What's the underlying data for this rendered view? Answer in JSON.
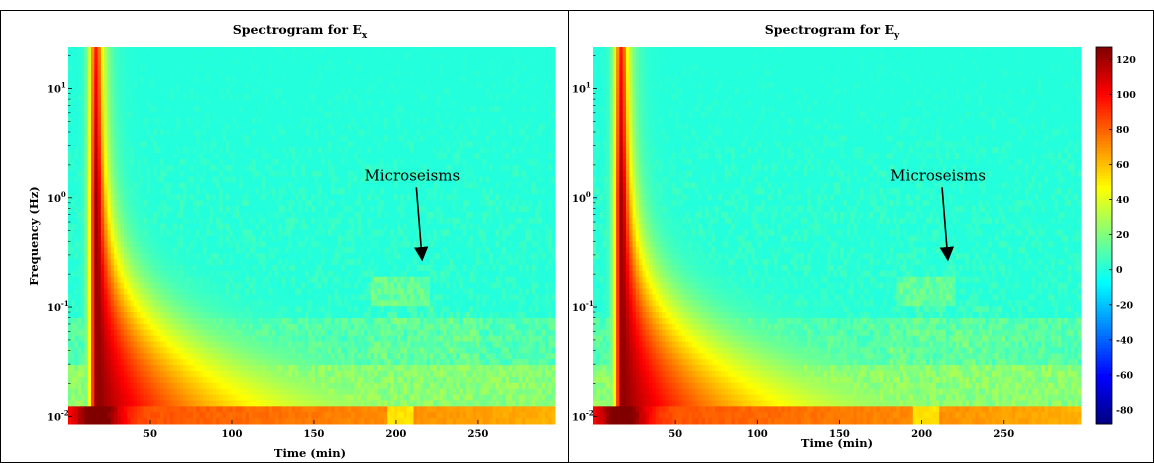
{
  "chart_data": [
    {
      "type": "heatmap",
      "title": "Spectrogram for E",
      "title_subscript": "x",
      "xlabel": "Time (min)",
      "ylabel": "Frequency (Hz)",
      "x_ticks": [
        50,
        100,
        150,
        200,
        250
      ],
      "x_tick_labels": [
        "50",
        "100",
        "150",
        "200",
        "250"
      ],
      "y_scale": "log",
      "y_ticks": [
        0.01,
        0.1,
        1,
        10
      ],
      "y_tick_labels": [
        "10",
        "10",
        "10",
        "10"
      ],
      "y_tick_exponents": [
        "-2",
        "-1",
        "0",
        "1"
      ],
      "xlim": [
        0,
        297
      ],
      "ylim": [
        0.0085,
        24
      ],
      "annotation": {
        "text": "Microseisms",
        "arrow_tail": [
          210,
          1.3
        ],
        "arrow_head": [
          216,
          0.27
        ]
      },
      "features": {
        "event_peak_time_min": 18,
        "event_peak_level": 125,
        "background_level": 0,
        "microseism_band_hz": [
          0.1,
          0.2
        ],
        "low_freq_band_level": 85
      }
    },
    {
      "type": "heatmap",
      "title": "Spectrogram for E",
      "title_subscript": "y",
      "xlabel": "Time (min)",
      "ylabel": "",
      "x_ticks": [
        50,
        100,
        150,
        200,
        250
      ],
      "x_tick_labels": [
        "50",
        "100",
        "150",
        "200",
        "250"
      ],
      "y_scale": "log",
      "y_ticks": [
        0.01,
        0.1,
        1,
        10
      ],
      "y_tick_labels": [
        "10",
        "10",
        "10",
        "10"
      ],
      "y_tick_exponents": [
        "-2",
        "-1",
        "0",
        "1"
      ],
      "xlim": [
        0,
        297
      ],
      "ylim": [
        0.0085,
        24
      ],
      "annotation": {
        "text": "Microseisms",
        "arrow_tail": [
          210,
          1.3
        ],
        "arrow_head": [
          216,
          0.27
        ]
      },
      "features": {
        "event_peak_time_min": 18,
        "event_peak_level": 125,
        "background_level": 0,
        "microseism_band_hz": [
          0.1,
          0.2
        ],
        "low_freq_band_level": 85
      }
    }
  ],
  "colorbar": {
    "ticks": [
      120,
      100,
      80,
      60,
      40,
      20,
      0,
      -20,
      -40,
      -60,
      -80
    ],
    "tick_labels": [
      "120",
      "100",
      "80",
      "60",
      "40",
      "20",
      "0",
      "-20",
      "-40",
      "-60",
      "-80"
    ],
    "range": [
      -88,
      127
    ],
    "colormap": "jet"
  }
}
